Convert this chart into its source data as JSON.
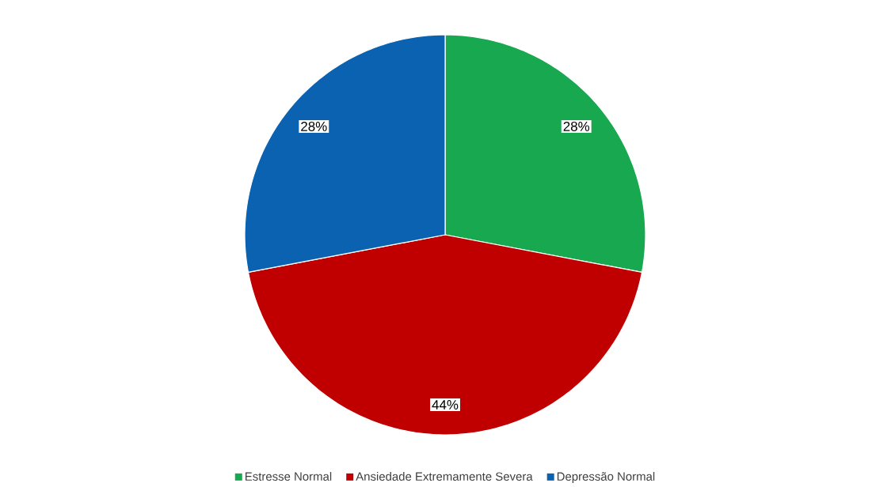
{
  "chart_data": {
    "type": "pie",
    "categories": [
      "Estresse Normal",
      "Ansiedade Extremamente Severa",
      "Depressão Normal"
    ],
    "values": [
      28,
      44,
      28
    ],
    "value_labels": [
      "28%",
      "44%",
      "28%"
    ],
    "colors": [
      "#17a850",
      "#c00000",
      "#0a62b0"
    ],
    "legend": "bottom"
  }
}
